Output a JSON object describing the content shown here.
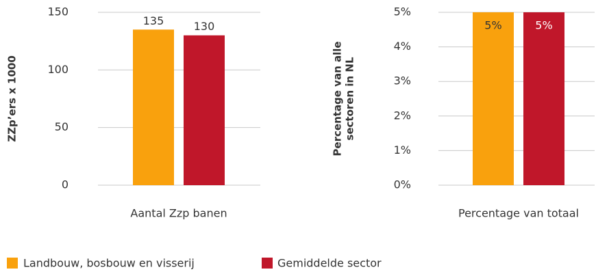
{
  "chart_data": [
    {
      "type": "bar",
      "ylabel": "ZZp’ers x 1000",
      "categories": [
        "Aantal Zzp banen"
      ],
      "series": [
        {
          "name": "Landbouw, bosbouw en visserij",
          "color": "#f9a10d",
          "values": [
            135
          ]
        },
        {
          "name": "Gemiddelde sector",
          "color": "#c0172a",
          "values": [
            130
          ]
        }
      ],
      "ylim": [
        0,
        150
      ],
      "yticks": [
        0,
        50,
        100,
        150
      ],
      "grid": true
    },
    {
      "type": "bar",
      "ylabel": [
        "Percentage van alle",
        "sectoren in NL"
      ],
      "categories": [
        "Percentage van totaal"
      ],
      "series": [
        {
          "color": "#f9a10d",
          "values": [
            5
          ],
          "value_labels": [
            "5%"
          ]
        },
        {
          "color": "#c0172a",
          "values": [
            5
          ],
          "value_labels": [
            "5%"
          ]
        }
      ],
      "ylim": [
        0,
        5
      ],
      "yticks": [
        {
          "value": 0,
          "label": "0%"
        },
        {
          "value": 1,
          "label": "1%"
        },
        {
          "value": 2,
          "label": "2%"
        },
        {
          "value": 3,
          "label": "3%"
        },
        {
          "value": 4,
          "label": "4%"
        },
        {
          "value": 5,
          "label": "5%"
        }
      ],
      "grid": true
    }
  ]
}
